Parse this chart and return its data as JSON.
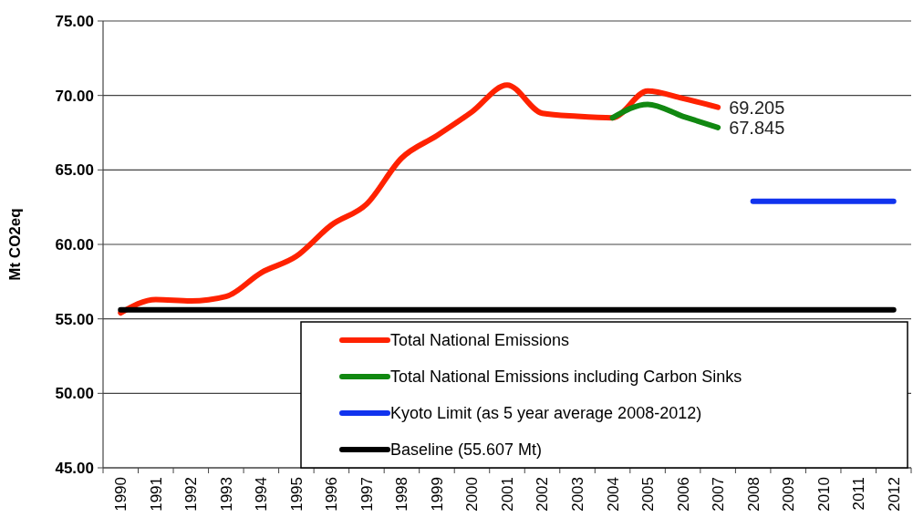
{
  "chart_data": {
    "type": "line",
    "ylabel": "Mt CO2eq",
    "categories": [
      "1990",
      "1991",
      "1992",
      "1993",
      "1994",
      "1995",
      "1996",
      "1997",
      "1998",
      "1999",
      "2000",
      "2001",
      "2002",
      "2003",
      "2004",
      "2005",
      "2006",
      "2007",
      "2008",
      "2009",
      "2010",
      "2011",
      "2012"
    ],
    "ylim": [
      45,
      75
    ],
    "yticks": [
      {
        "value": 45,
        "label": "45.00"
      },
      {
        "value": 50,
        "label": "50.00"
      },
      {
        "value": 55,
        "label": "55.00"
      },
      {
        "value": 60,
        "label": "60.00"
      },
      {
        "value": 65,
        "label": "65.00"
      },
      {
        "value": 70,
        "label": "70.00"
      },
      {
        "value": 75,
        "label": "75.00"
      }
    ],
    "grid": "y",
    "legend": "bottom",
    "series": [
      {
        "name": "Total National Emissions",
        "color": "#ff2200",
        "values": [
          55.4,
          56.3,
          56.2,
          56.5,
          58.1,
          59.2,
          61.3,
          62.7,
          65.8,
          67.3,
          68.9,
          70.7,
          68.8,
          68.6,
          68.5,
          70.3,
          69.8,
          69.205,
          null,
          null,
          null,
          null,
          null
        ],
        "value_labels": [
          null,
          null,
          null,
          null,
          null,
          null,
          null,
          null,
          null,
          null,
          null,
          null,
          null,
          null,
          null,
          null,
          null,
          "69.205",
          null,
          null,
          null,
          null,
          null
        ]
      },
      {
        "name": "Total National Emissions including Carbon Sinks",
        "color": "#118811",
        "values": [
          null,
          null,
          null,
          null,
          null,
          null,
          null,
          null,
          null,
          null,
          null,
          null,
          null,
          null,
          68.5,
          69.4,
          68.6,
          67.845,
          null,
          null,
          null,
          null,
          null
        ],
        "value_labels": [
          null,
          null,
          null,
          null,
          null,
          null,
          null,
          null,
          null,
          null,
          null,
          null,
          null,
          null,
          null,
          null,
          null,
          "67.845",
          null,
          null,
          null,
          null,
          null
        ]
      },
      {
        "name": "Kyoto Limit (as 5 year average 2008-2012)",
        "color": "#1133ee",
        "values": [
          null,
          null,
          null,
          null,
          null,
          null,
          null,
          null,
          null,
          null,
          null,
          null,
          null,
          null,
          null,
          null,
          null,
          null,
          62.9,
          62.9,
          62.9,
          62.9,
          62.9
        ]
      },
      {
        "name": "Baseline (55.607 Mt)",
        "color": "#000000",
        "values": [
          55.607,
          55.607,
          55.607,
          55.607,
          55.607,
          55.607,
          55.607,
          55.607,
          55.607,
          55.607,
          55.607,
          55.607,
          55.607,
          55.607,
          55.607,
          55.607,
          55.607,
          55.607,
          55.607,
          55.607,
          55.607,
          55.607,
          55.607
        ]
      }
    ]
  }
}
